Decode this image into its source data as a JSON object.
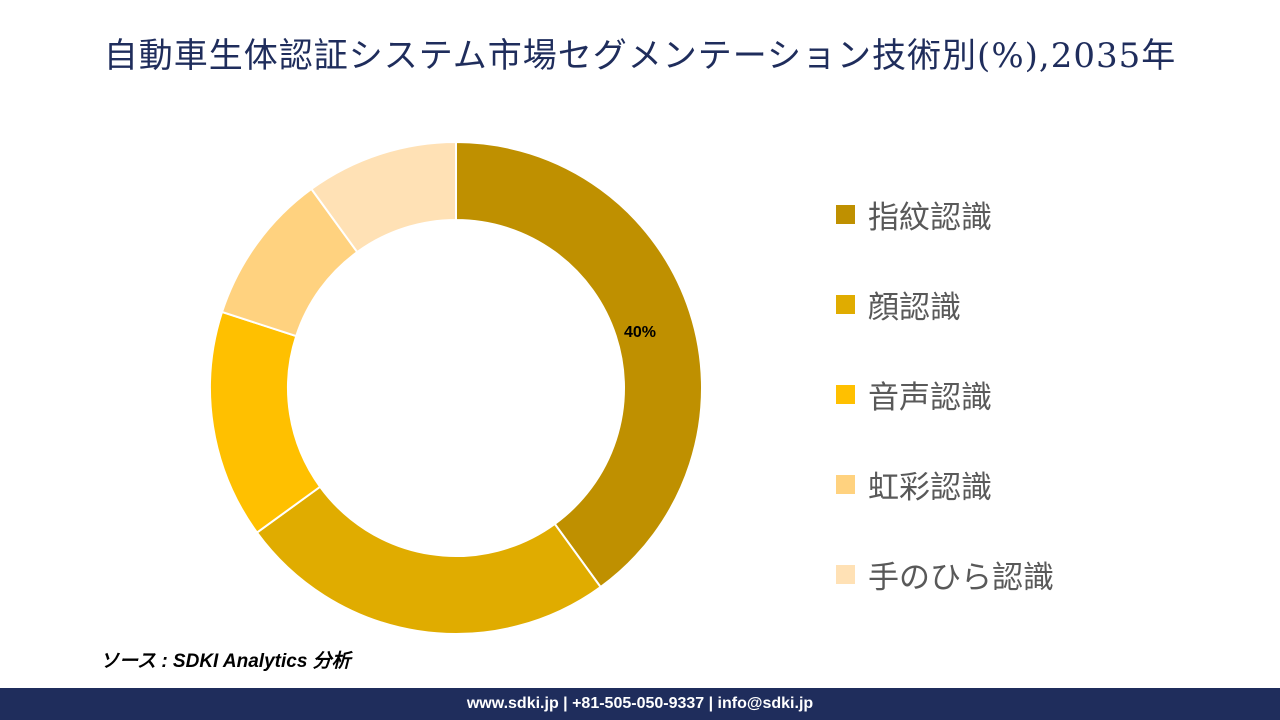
{
  "title": "自動車生体認証システム市場セグメンテーション技術別(%),2035年",
  "chart_data": {
    "type": "pie",
    "style": "donut",
    "categories": [
      "指紋認識",
      "顔認識",
      "音声認識",
      "虹彩認識",
      "手のひら認識"
    ],
    "values": [
      40,
      25,
      15,
      10,
      10
    ],
    "colors": [
      "#BF9000",
      "#E0AC00",
      "#FFC000",
      "#FFD27F",
      "#FFE1B5"
    ],
    "data_labels": [
      "40%",
      "",
      "",
      "",
      ""
    ],
    "legend_position": "right"
  },
  "source": "ソース : SDKI Analytics 分析",
  "footer": "www.sdki.jp | +81-505-050-9337 | info@sdki.jp"
}
